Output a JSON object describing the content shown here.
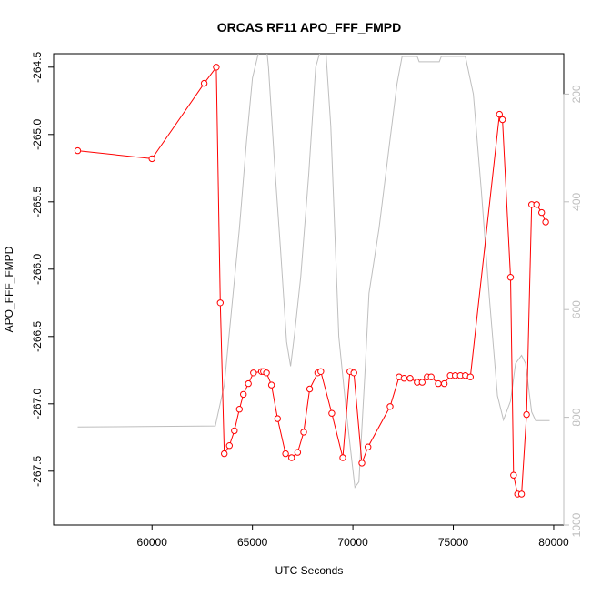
{
  "colors": {
    "primary_series": "#ff0000",
    "secondary_series": "#bebebe",
    "axis": "#000000",
    "secondary_axis": "#bebebe"
  },
  "chart_data": {
    "type": "line",
    "title": "ORCAS RF11 APO_FFF_FMPD",
    "xlabel": "UTC Seconds",
    "ylabel": "APO_FFF_FMPD",
    "xlim": [
      55100,
      80500
    ],
    "ylim": [
      -267.9,
      -264.4
    ],
    "x_ticks": [
      60000,
      65000,
      70000,
      75000,
      80000
    ],
    "x_tick_labels": [
      "60000",
      "65000",
      "70000",
      "75000",
      "80000"
    ],
    "y_ticks": [
      -264.5,
      -265.0,
      -265.5,
      -266.0,
      -266.5,
      -267.0,
      -267.5
    ],
    "y_tick_labels": [
      "-264.5",
      "-265.0",
      "-265.5",
      "-266.0",
      "-266.5",
      "-267.0",
      "-267.5"
    ],
    "y2_range_top_to_bottom": [
      125,
      1000
    ],
    "y2_ticks": [
      200,
      400,
      600,
      800,
      1000
    ],
    "y2_tick_labels": [
      "200",
      "400",
      "600",
      "800",
      "1000"
    ],
    "grid": false,
    "series": [
      {
        "axis": "left",
        "style": "line+markers",
        "x": [
          56300,
          60000,
          62600,
          63200,
          63400,
          63600,
          63850,
          64100,
          64350,
          64550,
          64800,
          65050,
          65450,
          65550,
          65700,
          65950,
          66250,
          66650,
          66950,
          67250,
          67550,
          67850,
          68250,
          68400,
          68950,
          69500,
          69850,
          70050,
          70450,
          70750,
          71850,
          72300,
          72550,
          72850,
          73200,
          73450,
          73700,
          73900,
          74250,
          74550,
          74850,
          75100,
          75350,
          75600,
          75850,
          77300,
          77450,
          77850,
          78000,
          78200,
          78400,
          78650,
          78900,
          79150,
          79400,
          79600
        ],
        "y": [
          -265.12,
          -265.18,
          -264.62,
          -264.5,
          -266.25,
          -267.37,
          -267.31,
          -267.2,
          -267.04,
          -266.93,
          -266.85,
          -266.77,
          -266.76,
          -266.76,
          -266.77,
          -266.86,
          -267.11,
          -267.37,
          -267.4,
          -267.36,
          -267.21,
          -266.89,
          -266.77,
          -266.76,
          -267.07,
          -267.4,
          -266.76,
          -266.77,
          -267.44,
          -267.32,
          -267.02,
          -266.8,
          -266.81,
          -266.81,
          -266.84,
          -266.84,
          -266.8,
          -266.8,
          -266.85,
          -266.85,
          -266.79,
          -266.79,
          -266.79,
          -266.79,
          -266.8,
          -264.85,
          -264.89,
          -266.06,
          -267.53,
          -267.67,
          -267.67,
          -267.08,
          -265.52,
          -265.52,
          -265.58,
          -265.65
        ]
      },
      {
        "axis": "right",
        "style": "line",
        "x": [
          56300,
          63150,
          63600,
          64350,
          64700,
          65000,
          65450,
          65650,
          65800,
          66100,
          66400,
          66700,
          66900,
          67100,
          67400,
          67800,
          68150,
          68600,
          68900,
          69300,
          69700,
          70100,
          70300,
          70600,
          70800,
          71300,
          71800,
          72200,
          72450,
          73200,
          73300,
          73700,
          73300,
          74300,
          74400,
          74800,
          75600,
          76000,
          76400,
          76800,
          77200,
          77500,
          77850,
          78100,
          78400,
          78600,
          78900,
          79100,
          79800
        ],
        "y": [
          818,
          816,
          740,
          450,
          290,
          170,
          100,
          95,
          150,
          330,
          490,
          660,
          705,
          645,
          540,
          350,
          150,
          90,
          260,
          650,
          800,
          930,
          920,
          720,
          570,
          450,
          300,
          180,
          130,
          130,
          140,
          140,
          140,
          140,
          130,
          130,
          130,
          200,
          380,
          580,
          760,
          805,
          770,
          700,
          685,
          700,
          790,
          806,
          806
        ]
      }
    ]
  }
}
